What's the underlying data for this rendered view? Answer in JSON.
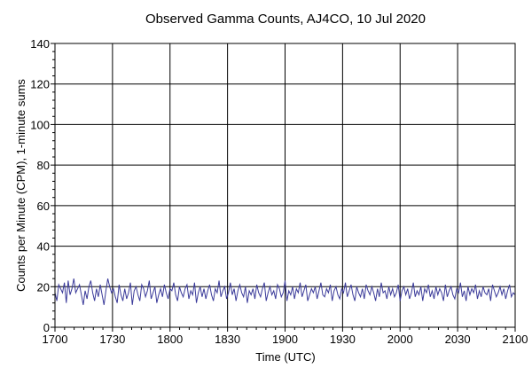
{
  "chart_data": {
    "type": "line",
    "title": "Observed Gamma Counts, AJ4CO, 10 Jul 2020",
    "xlabel": "Time (UTC)",
    "ylabel": "Counts per Minute (CPM), 1-minute sums",
    "x_ticks": [
      "1700",
      "1730",
      "1800",
      "1830",
      "1900",
      "1930",
      "2000",
      "2030",
      "2100"
    ],
    "y_ticks": [
      0,
      20,
      40,
      60,
      80,
      100,
      120,
      140
    ],
    "ylim": [
      0,
      140
    ],
    "x_range_minutes": [
      0,
      240
    ],
    "grid": true,
    "series_color": "#3b3b9a",
    "series": [
      {
        "values": [
          17,
          13,
          21,
          19,
          17,
          22,
          12,
          23,
          16,
          19,
          24,
          17,
          19,
          21,
          16,
          11,
          18,
          14,
          20,
          23,
          17,
          13,
          19,
          15,
          21,
          16,
          11,
          18,
          24,
          20,
          17,
          19,
          15,
          12,
          21,
          16,
          13,
          19,
          14,
          17,
          22,
          11,
          18,
          20,
          16,
          13,
          21,
          19,
          15,
          18,
          23,
          14,
          17,
          20,
          12,
          16,
          19,
          15,
          21,
          17,
          14,
          19,
          18,
          22,
          16,
          13,
          20,
          17,
          15,
          19,
          21,
          14,
          18,
          16,
          22,
          12,
          17,
          20,
          15,
          19,
          14,
          18,
          21,
          16,
          13,
          19,
          17,
          23,
          15,
          18,
          20,
          14,
          17,
          22,
          16,
          19,
          13,
          18,
          21,
          17,
          15,
          20,
          12,
          18,
          16,
          19,
          14,
          21,
          17,
          15,
          19,
          22,
          13,
          17,
          20,
          16,
          18,
          14,
          21,
          19,
          15,
          17,
          23,
          13,
          18,
          16,
          20,
          14,
          19,
          17,
          22,
          15,
          18,
          21,
          13,
          16,
          19,
          17,
          20,
          14,
          18,
          22,
          16,
          15,
          19,
          17,
          21,
          13,
          18,
          20,
          16,
          14,
          19,
          17,
          22,
          15,
          18,
          21,
          16,
          13,
          20,
          17,
          15,
          19,
          14,
          21,
          18,
          16,
          20,
          17,
          13,
          19,
          15,
          22,
          17,
          18,
          14,
          20,
          16,
          19,
          15,
          17,
          21,
          13,
          18,
          20,
          16,
          19,
          14,
          17,
          22,
          15,
          18,
          16,
          20,
          13,
          19,
          17,
          21,
          15,
          18,
          14,
          20,
          16,
          19,
          17,
          13,
          21,
          15,
          18,
          20,
          16,
          14,
          19,
          17,
          22,
          15,
          18,
          13,
          20,
          16,
          19,
          17,
          21,
          14,
          18,
          15,
          20,
          17,
          16,
          19,
          13,
          21,
          18,
          15,
          17,
          20,
          16,
          19,
          14,
          18,
          21,
          15,
          17,
          16
        ]
      }
    ]
  }
}
